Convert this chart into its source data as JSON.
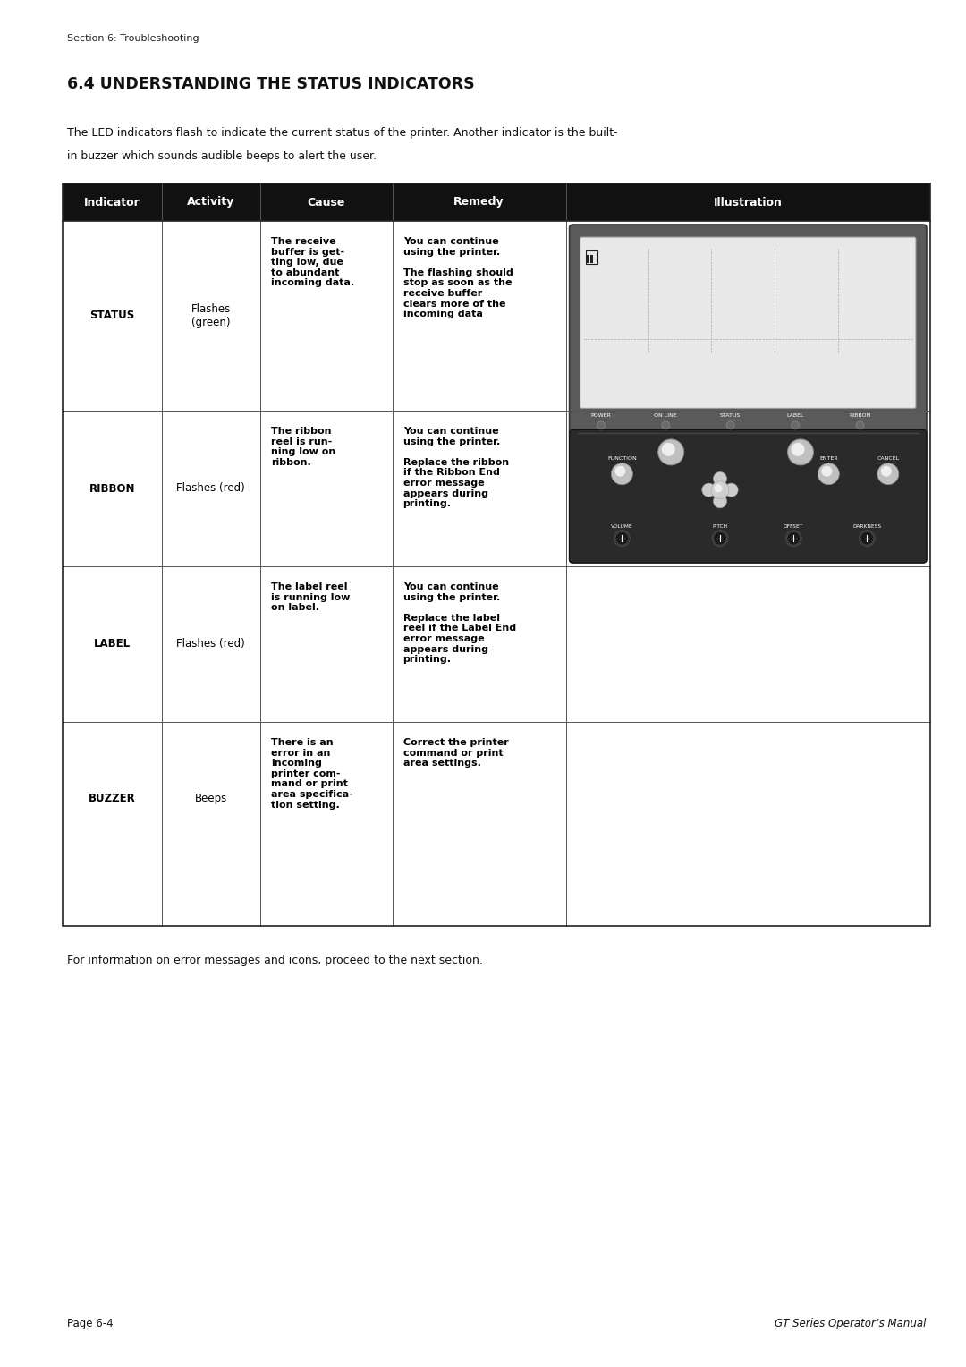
{
  "page_width": 10.8,
  "page_height": 15.28,
  "background_color": "#ffffff",
  "header_text": "Section 6: Troubleshooting",
  "title": "6.4 UNDERSTANDING THE STATUS INDICATORS",
  "intro_line1": "The LED indicators flash to indicate the current status of the printer. Another indicator is the built-",
  "intro_line2": "in buzzer which sounds audible beeps to alert the user.",
  "footer_left": "Page 6-4",
  "footer_right": "GT Series Operator’s Manual",
  "table_header": [
    "Indicator",
    "Activity",
    "Cause",
    "Remedy",
    "Illustration"
  ],
  "header_bg": "#111111",
  "header_fg": "#ffffff",
  "rows": [
    {
      "indicator": "STATUS",
      "activity": "Flashes\n(green)",
      "cause": "The receive\nbuffer is get-\nting low, due\nto abundant\nincoming data.",
      "remedy": "You can continue\nusing the printer.\n\nThe flashing should\nstop as soon as the\nreceive buffer\nclears more of the\nincoming data",
      "has_illustration": true
    },
    {
      "indicator": "RIBBON",
      "activity": "Flashes (red)",
      "cause": "The ribbon\nreel is run-\nning low on\nribbon.",
      "remedy": "You can continue\nusing the printer.\n\nReplace the ribbon\nif the Ribbon End\nerror message\nappears during\nprinting.",
      "has_illustration": false
    },
    {
      "indicator": "LABEL",
      "activity": "Flashes (red)",
      "cause": "The label reel\nis running low\non label.",
      "remedy": "You can continue\nusing the printer.\n\nReplace the label\nreel if the Label End\nerror message\nappears during\nprinting.",
      "has_illustration": false
    },
    {
      "indicator": "BUZZER",
      "activity": "Beeps",
      "cause": "There is an\nerror in an\nincoming\nprinter com-\nmand or print\narea specifica-\ntion setting.",
      "remedy": "Correct the printer\ncommand or print\narea settings.",
      "has_illustration": false
    }
  ]
}
